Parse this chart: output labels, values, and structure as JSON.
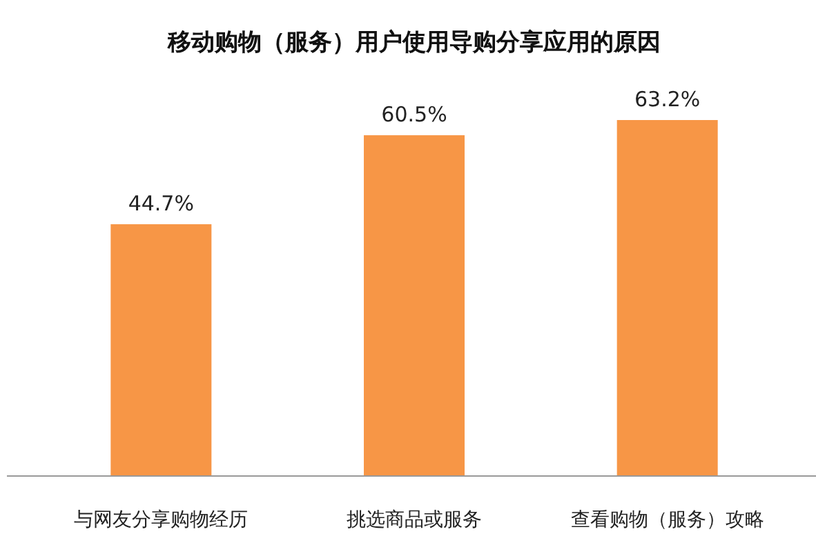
{
  "chart_data": {
    "type": "bar",
    "title": "移动购物（服务）用户使用导购分享应用的原因",
    "categories": [
      "与网友分享购物经历",
      "挑选商品或服务",
      "查看购物（服务）攻略"
    ],
    "values": [
      44.7,
      60.5,
      63.2
    ],
    "value_labels": [
      "44.7%",
      "60.5%",
      "63.2%"
    ],
    "color": "#f79646"
  }
}
